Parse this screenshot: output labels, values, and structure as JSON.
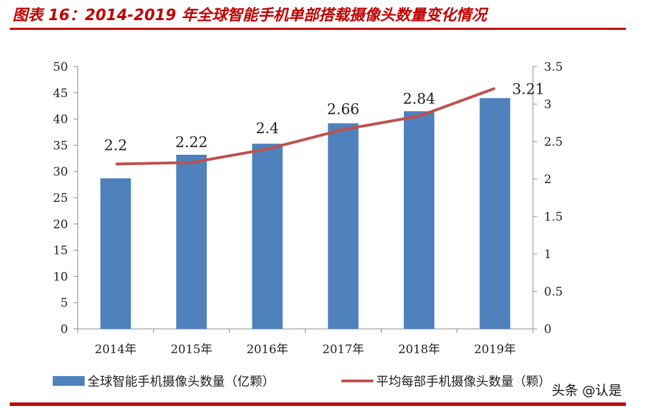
{
  "title": "图表 16：2014-2019 年全球智能手机单部搭载摄像头数量变化情况",
  "watermark": "头条 @认是",
  "colors": {
    "bar": "#4f81bd",
    "line": "#c0504d",
    "title": "#c00000"
  },
  "chart_data": {
    "type": "bar+line",
    "categories": [
      "2014年",
      "2015年",
      "2016年",
      "2017年",
      "2018年",
      "2019年"
    ],
    "series": [
      {
        "name": "全球智能手机摄像头数量（亿颗）",
        "type": "bar",
        "axis": "left",
        "values": [
          28.7,
          33.2,
          35.3,
          39.2,
          41.5,
          44.0
        ]
      },
      {
        "name": "平均每部手机摄像头数量（颗）",
        "type": "line",
        "axis": "right",
        "values": [
          2.2,
          2.22,
          2.4,
          2.66,
          2.84,
          3.21
        ],
        "labels": [
          "2.2",
          "2.22",
          "2.4",
          "2.66",
          "2.84",
          "3.21"
        ]
      }
    ],
    "y_left": {
      "range": [
        0,
        50
      ],
      "ticks": [
        "0",
        "5",
        "10",
        "15",
        "20",
        "25",
        "30",
        "35",
        "40",
        "45",
        "50"
      ]
    },
    "y_right": {
      "range": [
        0,
        3.5
      ],
      "ticks": [
        "0",
        "0.5",
        "1",
        "1.5",
        "2",
        "2.5",
        "3",
        "3.5"
      ]
    },
    "grid": false,
    "legend": "bottom"
  }
}
